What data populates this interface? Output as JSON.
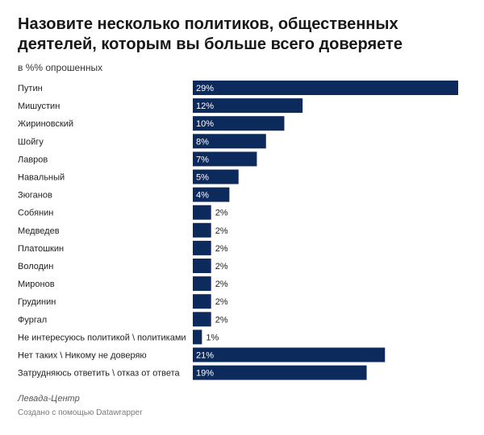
{
  "chart_data": {
    "type": "bar",
    "orientation": "horizontal",
    "title": "Назовите несколько политиков, общественных деятелей, которым вы больше всего доверяете",
    "subtitle": "в %% опрошенных",
    "value_suffix": "%",
    "categories": [
      "Путин",
      "Мишустин",
      "Жириновский",
      "Шойгу",
      "Лавров",
      "Навальный",
      "Зюганов",
      "Собянин",
      "Медведев",
      "Платошкин",
      "Володин",
      "Миронов",
      "Грудинин",
      "Фургал",
      "Не интересуюсь политикой \\ политиками",
      "Нет таких \\ Никому не доверяю",
      "Затрудняюсь ответить \\ отказ от ответа"
    ],
    "values": [
      29,
      12,
      10,
      8,
      7,
      5,
      4,
      2,
      2,
      2,
      2,
      2,
      2,
      2,
      1,
      21,
      19
    ],
    "xlim": [
      0,
      29
    ],
    "bar_color": "#0d2a5c",
    "grid": false,
    "source": "Левада-Центр",
    "credit": "Создано с помощью Datawrapper"
  }
}
